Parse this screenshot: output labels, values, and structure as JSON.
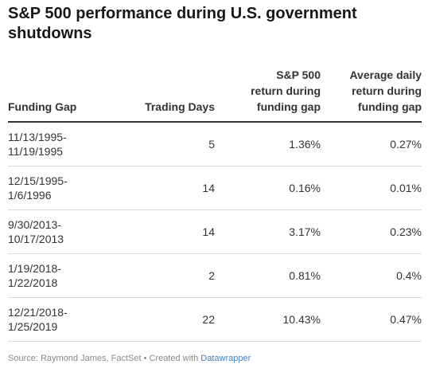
{
  "title": "S&P 500 performance during U.S. government shutdowns",
  "columns": {
    "c0": "Funding Gap",
    "c1": "Trading Days",
    "c2": [
      "S&P 500",
      "return during",
      "funding gap"
    ],
    "c3": [
      "Average daily",
      "return during",
      "funding gap"
    ]
  },
  "rows": [
    {
      "gap_start": "11/13/1995-",
      "gap_end": "11/19/1995",
      "days": "5",
      "ret": "1.36%",
      "avg": "0.27%"
    },
    {
      "gap_start": "12/15/1995-",
      "gap_end": "1/6/1996",
      "days": "14",
      "ret": "0.16%",
      "avg": "0.01%"
    },
    {
      "gap_start": "9/30/2013-",
      "gap_end": "10/17/2013",
      "days": "14",
      "ret": "3.17%",
      "avg": "0.23%"
    },
    {
      "gap_start": "1/19/2018-",
      "gap_end": "1/22/2018",
      "days": "2",
      "ret": "0.81%",
      "avg": "0.4%"
    },
    {
      "gap_start": "12/21/2018-",
      "gap_end": "1/25/2019",
      "days": "22",
      "ret": "10.43%",
      "avg": "0.47%"
    }
  ],
  "footer": {
    "source_text": "Source: Raymond James, FactSet • Created with ",
    "link_text": "Datawrapper"
  },
  "chart_data": {
    "type": "table",
    "title": "S&P 500 performance during U.S. government shutdowns",
    "columns": [
      "Funding Gap",
      "Trading Days",
      "S&P 500 return during funding gap",
      "Average daily return during funding gap"
    ],
    "rows": [
      [
        "11/13/1995-11/19/1995",
        5,
        1.36,
        0.27
      ],
      [
        "12/15/1995-1/6/1996",
        14,
        0.16,
        0.01
      ],
      [
        "9/30/2013-10/17/2013",
        14,
        3.17,
        0.23
      ],
      [
        "1/19/2018-1/22/2018",
        2,
        0.81,
        0.4
      ],
      [
        "12/21/2018-1/25/2019",
        22,
        10.43,
        0.47
      ]
    ]
  }
}
